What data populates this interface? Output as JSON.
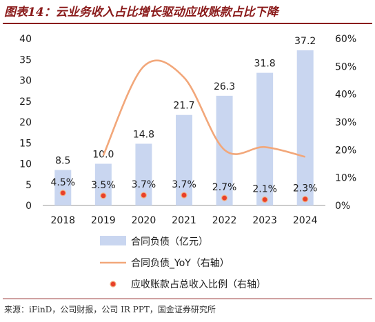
{
  "figure_title": "图表14：云业务收入占比增长驱动应收账款占比下降",
  "source": "来源：iFinD，公司财报，公司 IR PPT，国金证券研究所",
  "colors": {
    "bar": "#c9d6f0",
    "line": "#f2a77a",
    "dot_fill": "#e8402a",
    "dot_stroke": "#f4b183",
    "title": "#8a1a1a"
  },
  "chart_data": {
    "type": "bar",
    "categories": [
      "2018",
      "2019",
      "2020",
      "2021",
      "2022",
      "2023",
      "2024"
    ],
    "series": [
      {
        "name": "合同负债（亿元）",
        "type": "bar",
        "axis": "left",
        "values": [
          8.5,
          10.0,
          14.8,
          21.7,
          26.3,
          31.8,
          37.2
        ],
        "labels": [
          "8.5",
          "10.0",
          "14.8",
          "21.7",
          "26.3",
          "31.8",
          "37.2"
        ]
      },
      {
        "name": "合同负债_YoY（右轴）",
        "type": "line",
        "axis": "right",
        "values": [
          null,
          0.18,
          0.5,
          0.46,
          0.2,
          0.21,
          0.175
        ]
      },
      {
        "name": "应收账款占总收入比例（右轴）",
        "type": "scatter",
        "axis": "right",
        "values": [
          0.045,
          0.035,
          0.037,
          0.037,
          0.027,
          0.021,
          0.023
        ],
        "labels": [
          "4.5%",
          "3.5%",
          "3.7%",
          "3.7%",
          "2.7%",
          "2.1%",
          "2.3%"
        ]
      }
    ],
    "y_left": {
      "min": 0,
      "max": 40,
      "ticks": [
        "0",
        "5",
        "10",
        "15",
        "20",
        "25",
        "30",
        "35",
        "40"
      ]
    },
    "y_right": {
      "min": 0,
      "max": 0.6,
      "ticks": [
        "0%",
        "10%",
        "20%",
        "30%",
        "40%",
        "50%",
        "60%"
      ]
    },
    "grid": false,
    "legend_position": "bottom"
  }
}
